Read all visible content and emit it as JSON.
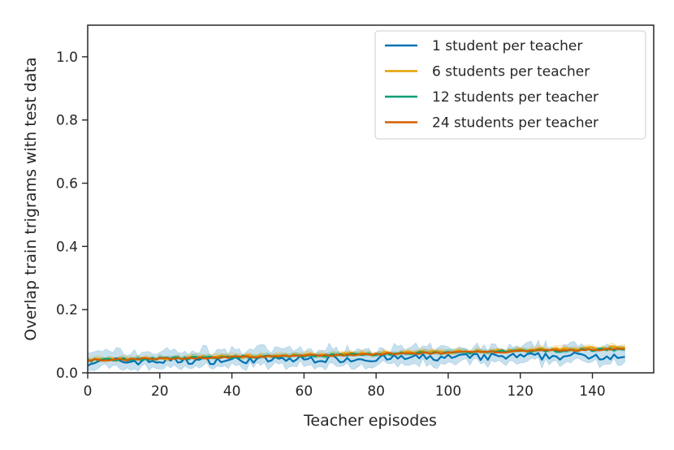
{
  "chart_data": {
    "type": "line",
    "title": "",
    "xlabel": "Teacher episodes",
    "ylabel": "Overlap train trigrams with test data",
    "xlim": [
      0,
      157
    ],
    "ylim": [
      0,
      1.1
    ],
    "xticks": [
      0,
      20,
      40,
      60,
      80,
      100,
      120,
      140
    ],
    "yticks": [
      0.0,
      0.2,
      0.4,
      0.6,
      0.8,
      1.0
    ],
    "xtick_labels": [
      "0",
      "20",
      "40",
      "60",
      "80",
      "100",
      "120",
      "140"
    ],
    "ytick_labels": [
      "0.0",
      "0.2",
      "0.4",
      "0.6",
      "0.8",
      "1.0"
    ],
    "grid": false,
    "legend_position": "top-right",
    "x_range": [
      0,
      149
    ],
    "series": [
      {
        "name": "1 student per teacher",
        "color": "#0072b2",
        "start": 0.035,
        "end": 0.055,
        "noise": 0.012,
        "band_lower": 0.02,
        "band_upper": 0.03,
        "show_band": true
      },
      {
        "name": "6 students per teacher",
        "color": "#e69f00",
        "start": 0.04,
        "end": 0.08,
        "noise": 0.005,
        "band_lower": 0.006,
        "band_upper": 0.008,
        "show_band": true
      },
      {
        "name": "12 students per teacher",
        "color": "#009e73",
        "start": 0.04,
        "end": 0.075,
        "noise": 0.004,
        "band_lower": 0.005,
        "band_upper": 0.007,
        "show_band": true
      },
      {
        "name": "24 students per teacher",
        "color": "#d55e00",
        "start": 0.04,
        "end": 0.075,
        "noise": 0.003,
        "band_lower": 0.004,
        "band_upper": 0.005,
        "show_band": false
      }
    ]
  }
}
